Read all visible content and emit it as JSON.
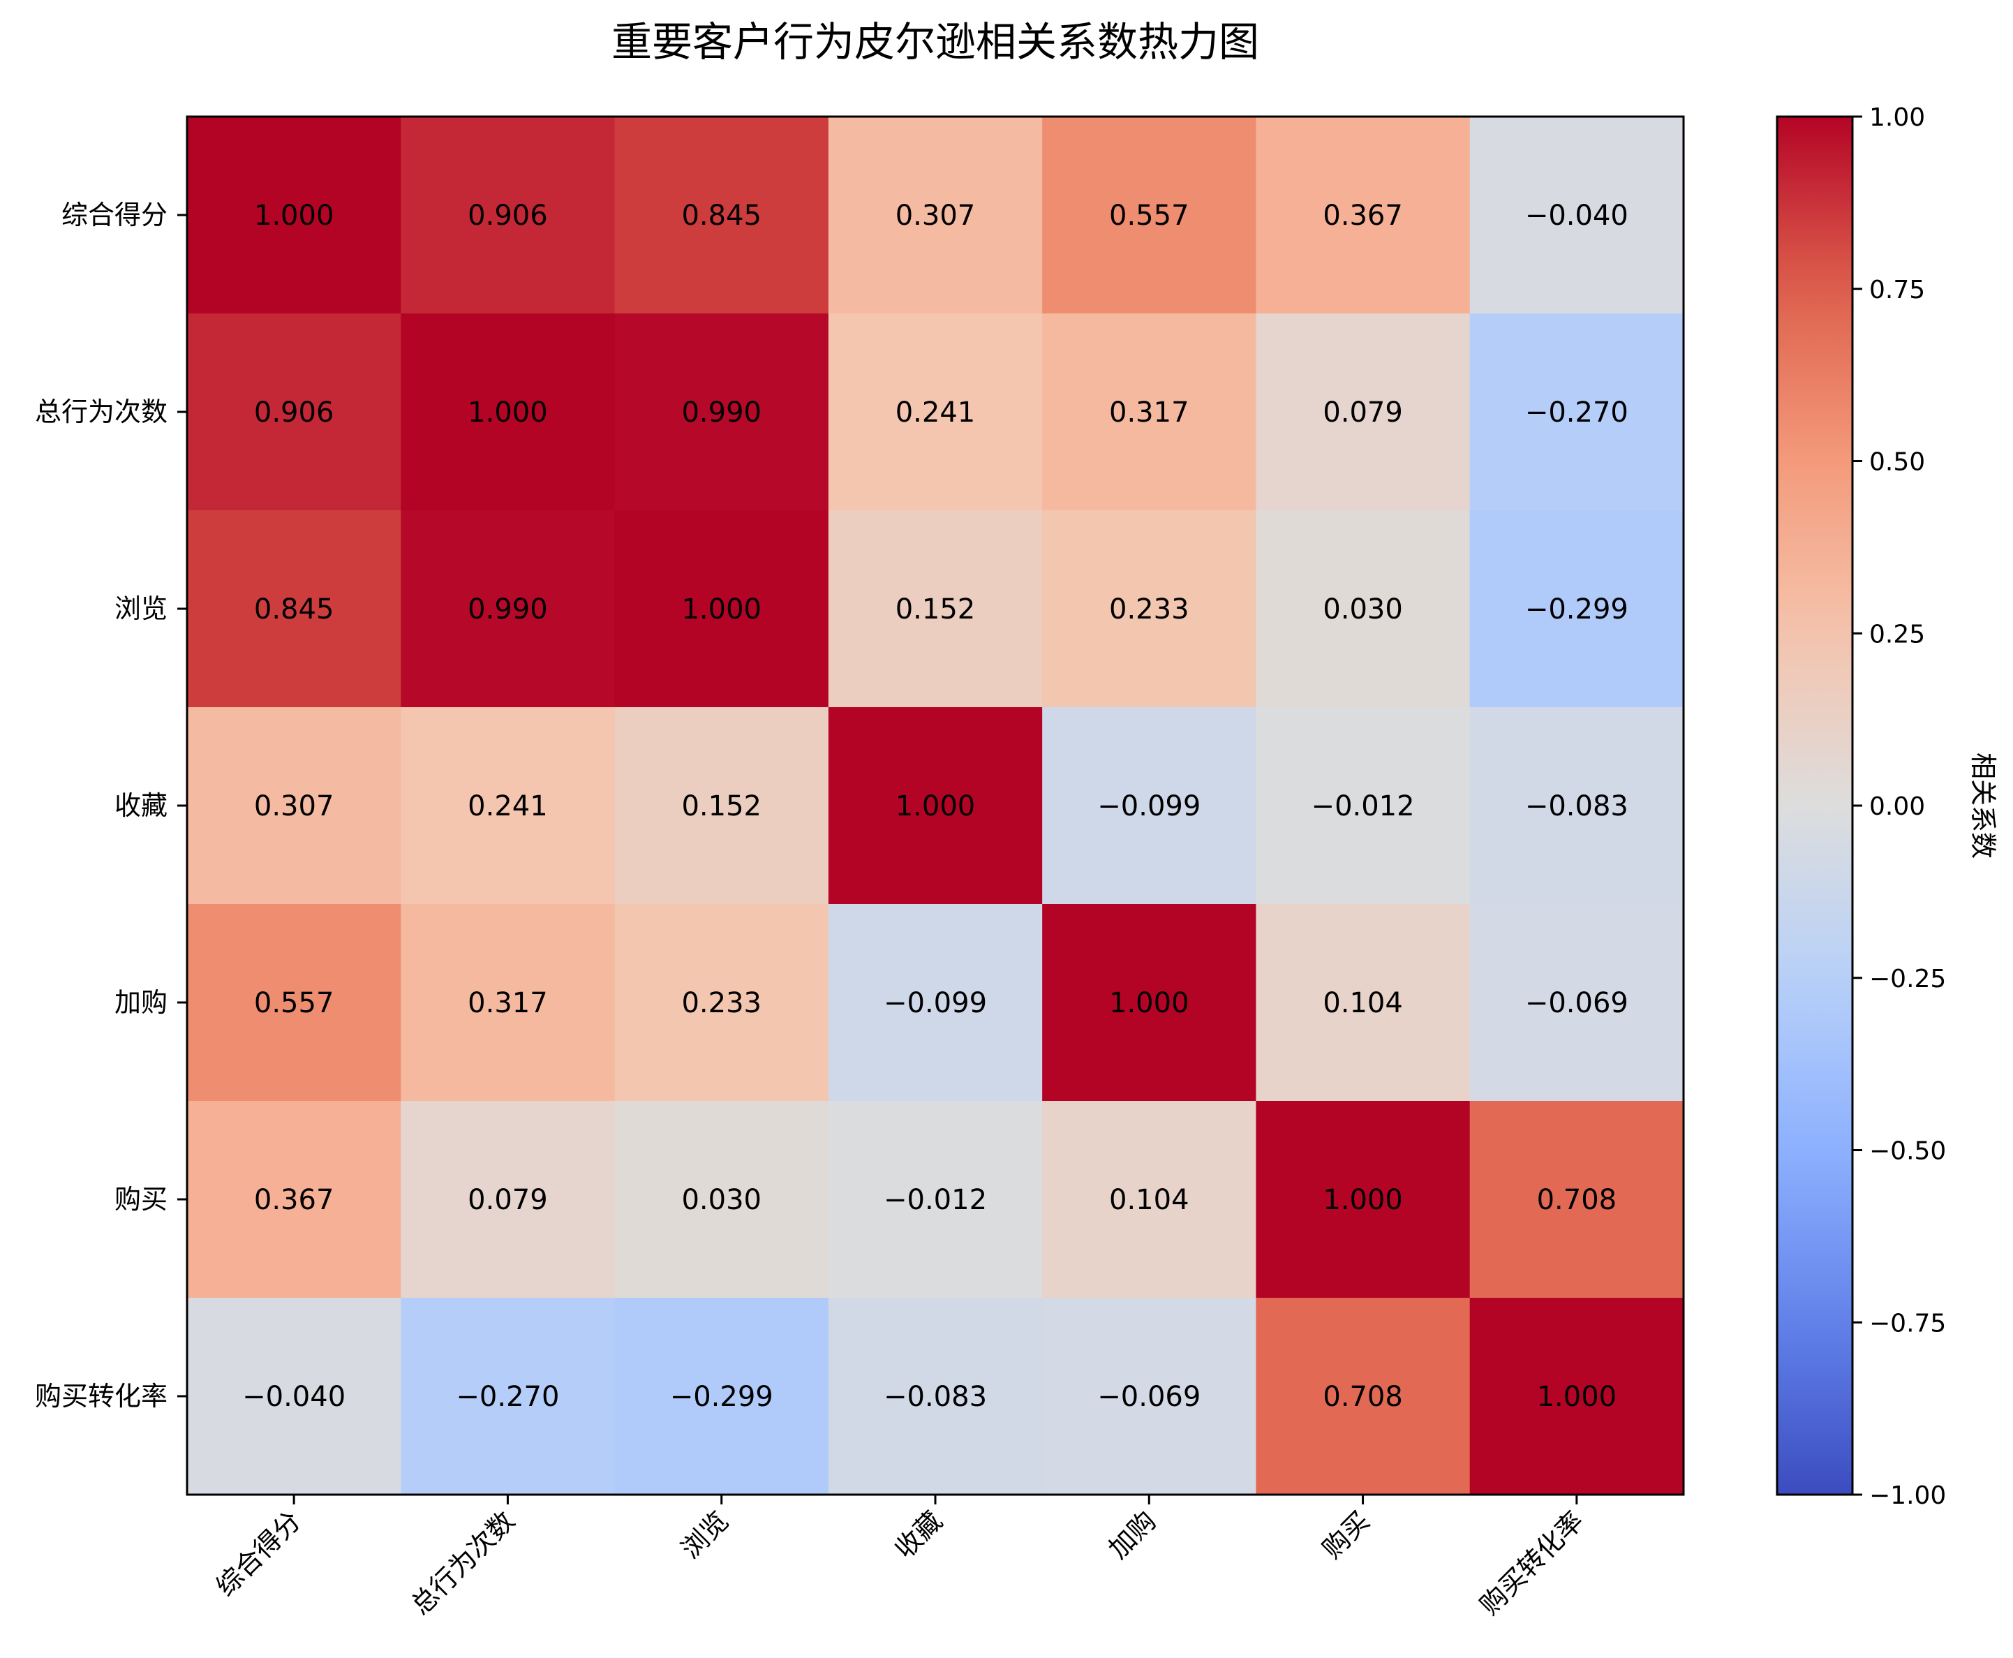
{
  "chart_data": {
    "type": "heatmap",
    "title": "重要客户行为皮尔逊相关系数热力图",
    "x_labels": [
      "综合得分",
      "总行为次数",
      "浏览",
      "收藏",
      "加购",
      "购买",
      "购买转化率"
    ],
    "y_labels": [
      "综合得分",
      "总行为次数",
      "浏览",
      "收藏",
      "加购",
      "购买",
      "购买转化率"
    ],
    "values": [
      [
        1.0,
        0.906,
        0.845,
        0.307,
        0.557,
        0.367,
        -0.04
      ],
      [
        0.906,
        1.0,
        0.99,
        0.241,
        0.317,
        0.079,
        -0.27
      ],
      [
        0.845,
        0.99,
        1.0,
        0.152,
        0.233,
        0.03,
        -0.299
      ],
      [
        0.307,
        0.241,
        0.152,
        1.0,
        -0.099,
        -0.012,
        -0.083
      ],
      [
        0.557,
        0.317,
        0.233,
        -0.099,
        1.0,
        0.104,
        -0.069
      ],
      [
        0.367,
        0.079,
        0.03,
        -0.012,
        0.104,
        1.0,
        0.708
      ],
      [
        -0.04,
        -0.27,
        -0.299,
        -0.083,
        -0.069,
        0.708,
        1.0
      ]
    ],
    "value_format_decimals": 3,
    "colormap": "coolwarm",
    "vmin": -1.0,
    "vmax": 1.0,
    "colorbar_label": "相关系数",
    "colorbar_ticks": [
      1.0,
      0.75,
      0.5,
      0.25,
      0.0,
      -0.25,
      -0.5,
      -0.75,
      -1.0
    ],
    "colorbar_tick_labels": [
      "1.00",
      "0.75",
      "0.50",
      "0.25",
      "0.00",
      "−0.25",
      "−0.50",
      "−0.75",
      "−1.00"
    ]
  }
}
